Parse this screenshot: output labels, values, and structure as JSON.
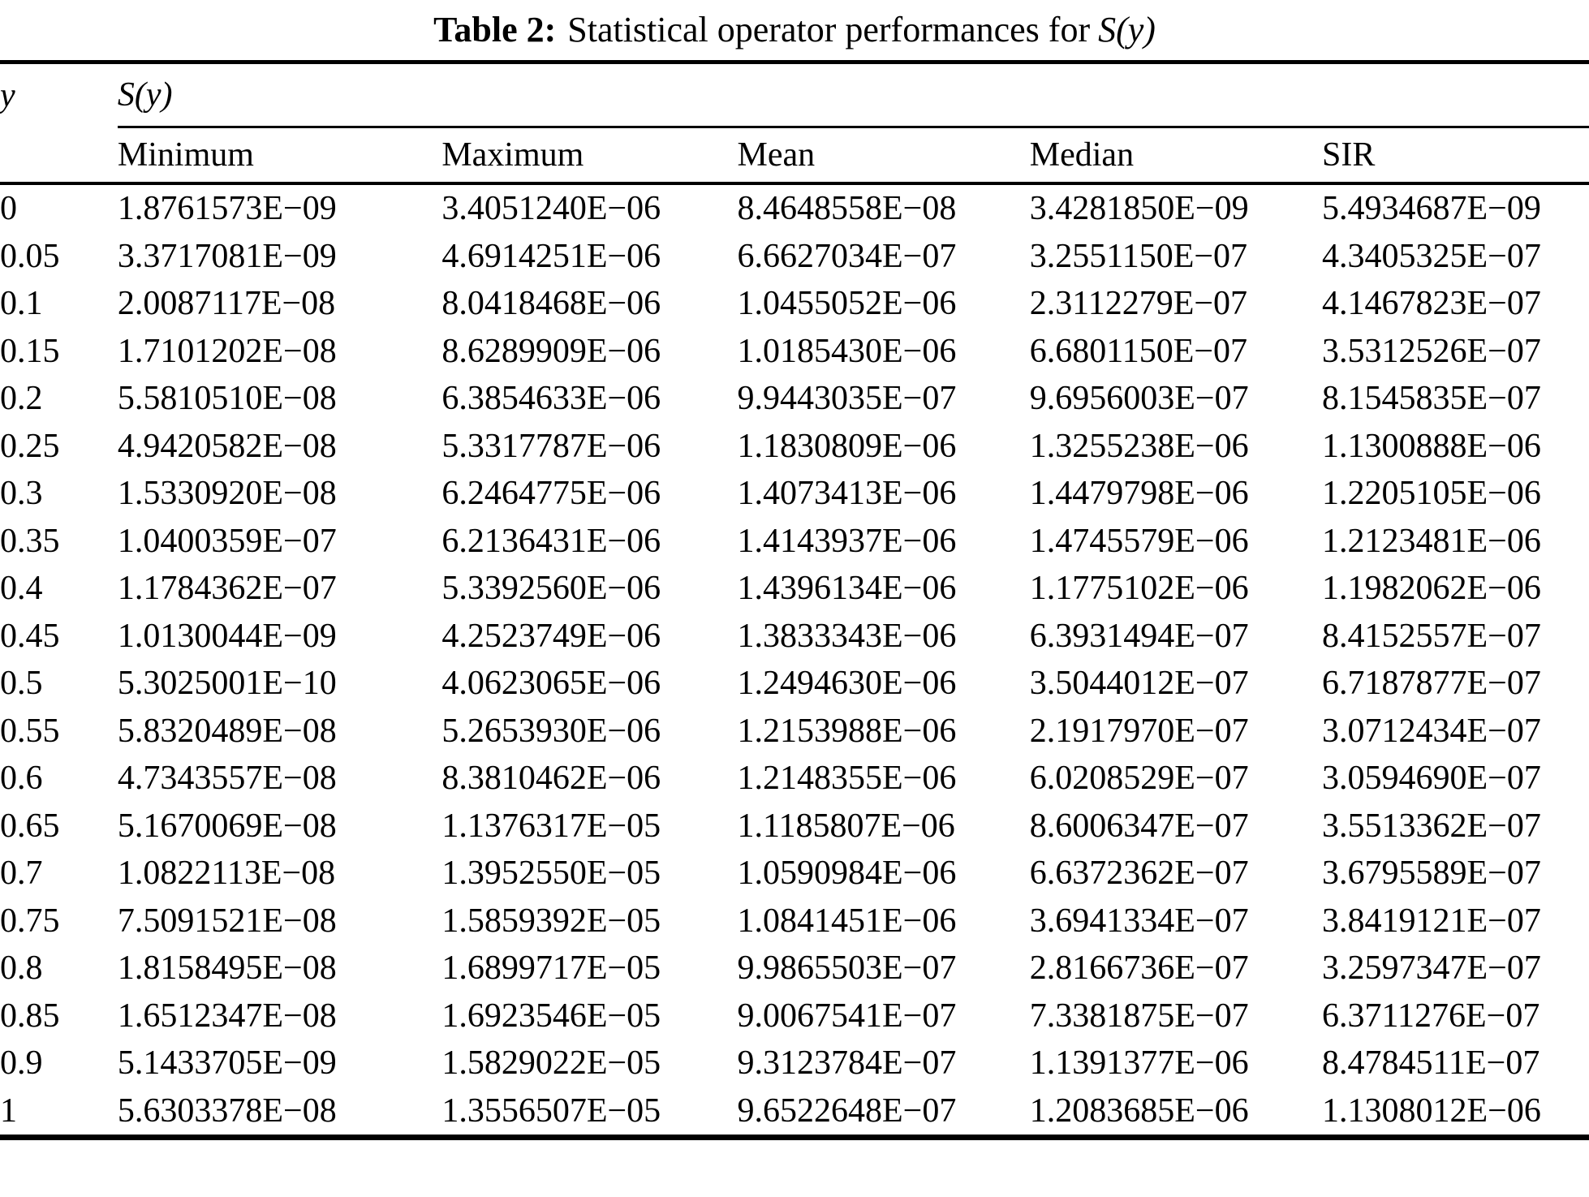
{
  "caption": {
    "label": "Table 2:",
    "text": "Statistical operator performances for",
    "math": "S(y)"
  },
  "table": {
    "y_header": "y",
    "group_header": "S(y)",
    "columns": [
      "Minimum",
      "Maximum",
      "Mean",
      "Median",
      "SIR"
    ],
    "rows": [
      [
        "0",
        "1.8761573E−09",
        "3.4051240E−06",
        "8.4648558E−08",
        "3.4281850E−09",
        "5.4934687E−09"
      ],
      [
        "0.05",
        "3.3717081E−09",
        "4.6914251E−06",
        "6.6627034E−07",
        "3.2551150E−07",
        "4.3405325E−07"
      ],
      [
        "0.1",
        "2.0087117E−08",
        "8.0418468E−06",
        "1.0455052E−06",
        "2.3112279E−07",
        "4.1467823E−07"
      ],
      [
        "0.15",
        "1.7101202E−08",
        "8.6289909E−06",
        "1.0185430E−06",
        "6.6801150E−07",
        "3.5312526E−07"
      ],
      [
        "0.2",
        "5.5810510E−08",
        "6.3854633E−06",
        "9.9443035E−07",
        "9.6956003E−07",
        "8.1545835E−07"
      ],
      [
        "0.25",
        "4.9420582E−08",
        "5.3317787E−06",
        "1.1830809E−06",
        "1.3255238E−06",
        "1.1300888E−06"
      ],
      [
        "0.3",
        "1.5330920E−08",
        "6.2464775E−06",
        "1.4073413E−06",
        "1.4479798E−06",
        "1.2205105E−06"
      ],
      [
        "0.35",
        "1.0400359E−07",
        "6.2136431E−06",
        "1.4143937E−06",
        "1.4745579E−06",
        "1.2123481E−06"
      ],
      [
        "0.4",
        "1.1784362E−07",
        "5.3392560E−06",
        "1.4396134E−06",
        "1.1775102E−06",
        "1.1982062E−06"
      ],
      [
        "0.45",
        "1.0130044E−09",
        "4.2523749E−06",
        "1.3833343E−06",
        "6.3931494E−07",
        "8.4152557E−07"
      ],
      [
        "0.5",
        "5.3025001E−10",
        "4.0623065E−06",
        "1.2494630E−06",
        "3.5044012E−07",
        "6.7187877E−07"
      ],
      [
        "0.55",
        "5.8320489E−08",
        "5.2653930E−06",
        "1.2153988E−06",
        "2.1917970E−07",
        "3.0712434E−07"
      ],
      [
        "0.6",
        "4.7343557E−08",
        "8.3810462E−06",
        "1.2148355E−06",
        "6.0208529E−07",
        "3.0594690E−07"
      ],
      [
        "0.65",
        "5.1670069E−08",
        "1.1376317E−05",
        "1.1185807E−06",
        "8.6006347E−07",
        "3.5513362E−07"
      ],
      [
        "0.7",
        "1.0822113E−08",
        "1.3952550E−05",
        "1.0590984E−06",
        "6.6372362E−07",
        "3.6795589E−07"
      ],
      [
        "0.75",
        "7.5091521E−08",
        "1.5859392E−05",
        "1.0841451E−06",
        "3.6941334E−07",
        "3.8419121E−07"
      ],
      [
        "0.8",
        "1.8158495E−08",
        "1.6899717E−05",
        "9.9865503E−07",
        "2.8166736E−07",
        "3.2597347E−07"
      ],
      [
        "0.85",
        "1.6512347E−08",
        "1.6923546E−05",
        "9.0067541E−07",
        "7.3381875E−07",
        "6.3711276E−07"
      ],
      [
        "0.9",
        "5.1433705E−09",
        "1.5829022E−05",
        "9.3123784E−07",
        "1.1391377E−06",
        "8.4784511E−07"
      ],
      [
        "1",
        "5.6303378E−08",
        "1.3556507E−05",
        "9.6522648E−07",
        "1.2083685E−06",
        "1.1308012E−06"
      ]
    ]
  },
  "colors": {
    "text": "#000000",
    "rule": "#000000",
    "background": "#ffffff"
  }
}
